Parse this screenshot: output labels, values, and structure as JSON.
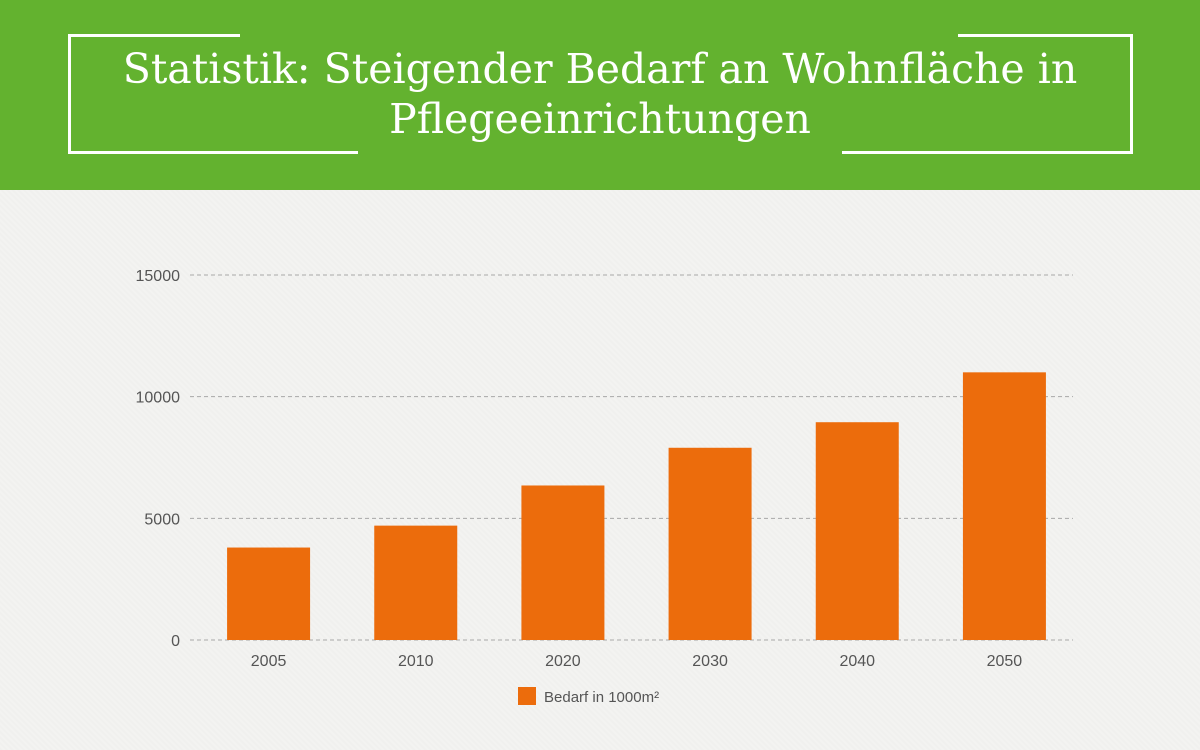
{
  "header": {
    "title": "Statistik: Steigender Bedarf an Wohnfläche in Pflegeeinrichtungen"
  },
  "colors": {
    "header_bg": "#63b22f",
    "bar": "#ec6c0c",
    "grid": "#a8a8a8",
    "tick_text": "#555555"
  },
  "chart_data": {
    "type": "bar",
    "title": "",
    "xlabel": "",
    "ylabel": "",
    "categories": [
      "2005",
      "2010",
      "2020",
      "2030",
      "2040",
      "2050"
    ],
    "series": [
      {
        "name": "Bedarf in 1000m²",
        "values": [
          3800,
          4700,
          6350,
          7900,
          8950,
          11000
        ]
      }
    ],
    "ylim": [
      0,
      15000
    ],
    "yticks": [
      0,
      5000,
      10000,
      15000
    ],
    "grid": true,
    "legend_position": "bottom-center"
  }
}
